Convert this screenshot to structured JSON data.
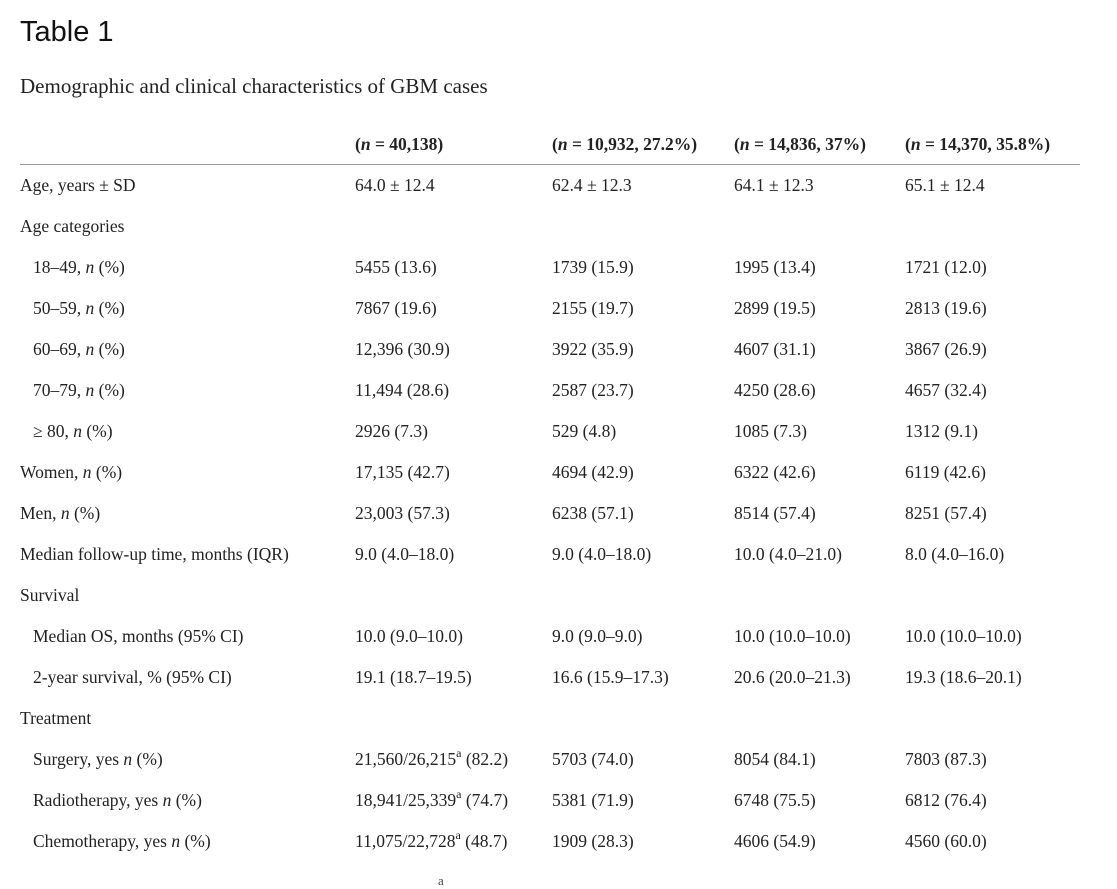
{
  "title": "Table 1",
  "caption": "Demographic and clinical characteristics of GBM cases",
  "headers": [
    "",
    "(n = 40,138)",
    "(n = 10,932, 27.2%)",
    "(n = 14,836, 37%)",
    "(n = 14,370, 35.8%)"
  ],
  "rows": [
    {
      "label": "Age, years ± SD",
      "sub": false,
      "cells": [
        "64.0 ± 12.4",
        "62.4 ± 12.3",
        "64.1 ± 12.3",
        "65.1 ± 12.4"
      ]
    },
    {
      "label": "Age categories",
      "sub": false,
      "cells": [
        "",
        "",
        "",
        ""
      ]
    },
    {
      "label": "18–49, n (%)",
      "sub": true,
      "cells": [
        "5455 (13.6)",
        "1739 (15.9)",
        "1995 (13.4)",
        "1721 (12.0)"
      ]
    },
    {
      "label": "50–59, n (%)",
      "sub": true,
      "cells": [
        "7867 (19.6)",
        "2155 (19.7)",
        "2899 (19.5)",
        "2813 (19.6)"
      ]
    },
    {
      "label": "60–69, n (%)",
      "sub": true,
      "cells": [
        "12,396 (30.9)",
        "3922 (35.9)",
        "4607 (31.1)",
        "3867 (26.9)"
      ]
    },
    {
      "label": "70–79, n (%)",
      "sub": true,
      "cells": [
        "11,494 (28.6)",
        "2587 (23.7)",
        "4250 (28.6)",
        "4657 (32.4)"
      ]
    },
    {
      "label": "≥ 80, n (%)",
      "sub": true,
      "cells": [
        "2926 (7.3)",
        "529 (4.8)",
        "1085 (7.3)",
        "1312 (9.1)"
      ]
    },
    {
      "label": "Women, n (%)",
      "sub": false,
      "cells": [
        "17,135 (42.7)",
        "4694 (42.9)",
        "6322 (42.6)",
        "6119 (42.6)"
      ]
    },
    {
      "label": "Men, n (%)",
      "sub": false,
      "cells": [
        "23,003 (57.3)",
        "6238 (57.1)",
        "8514 (57.4)",
        "8251 (57.4)"
      ]
    },
    {
      "label": "Median follow-up time, months (IQR)",
      "sub": false,
      "cells": [
        "9.0 (4.0–18.0)",
        "9.0 (4.0–18.0)",
        "10.0 (4.0–21.0)",
        "8.0 (4.0–16.0)"
      ]
    },
    {
      "label": "Survival",
      "sub": false,
      "cells": [
        "",
        "",
        "",
        ""
      ]
    },
    {
      "label": "Median OS, months (95% CI)",
      "sub": true,
      "cells": [
        "10.0 (9.0–10.0)",
        "9.0 (9.0–9.0)",
        "10.0 (10.0–10.0)",
        "10.0 (10.0–10.0)"
      ]
    },
    {
      "label": "2-year survival, % (95% CI)",
      "sub": true,
      "cells": [
        "19.1 (18.7–19.5)",
        "16.6 (15.9–17.3)",
        "20.6 (20.0–21.3)",
        "19.3 (18.6–20.1)"
      ]
    },
    {
      "label": "Treatment",
      "sub": false,
      "cells": [
        "",
        "",
        "",
        ""
      ]
    },
    {
      "label": "Surgery, yes n (%)",
      "sub": true,
      "cells": [
        "21,560/26,215|a|(82.2)",
        "5703 (74.0)",
        "8054 (84.1)",
        "7803 (87.3)"
      ]
    },
    {
      "label": "Radiotherapy, yes n (%)",
      "sub": true,
      "cells": [
        "18,941/25,339|a|(74.7)",
        "5381 (71.9)",
        "6748 (75.5)",
        "6812 (76.4)"
      ]
    },
    {
      "label": "Chemotherapy, yes n (%)",
      "sub": true,
      "cells": [
        "11,075/22,728|a|(48.7)",
        "1909 (28.3)",
        "4606 (54.9)",
        "4560 (60.0)"
      ]
    }
  ],
  "footnote_mark": "a"
}
